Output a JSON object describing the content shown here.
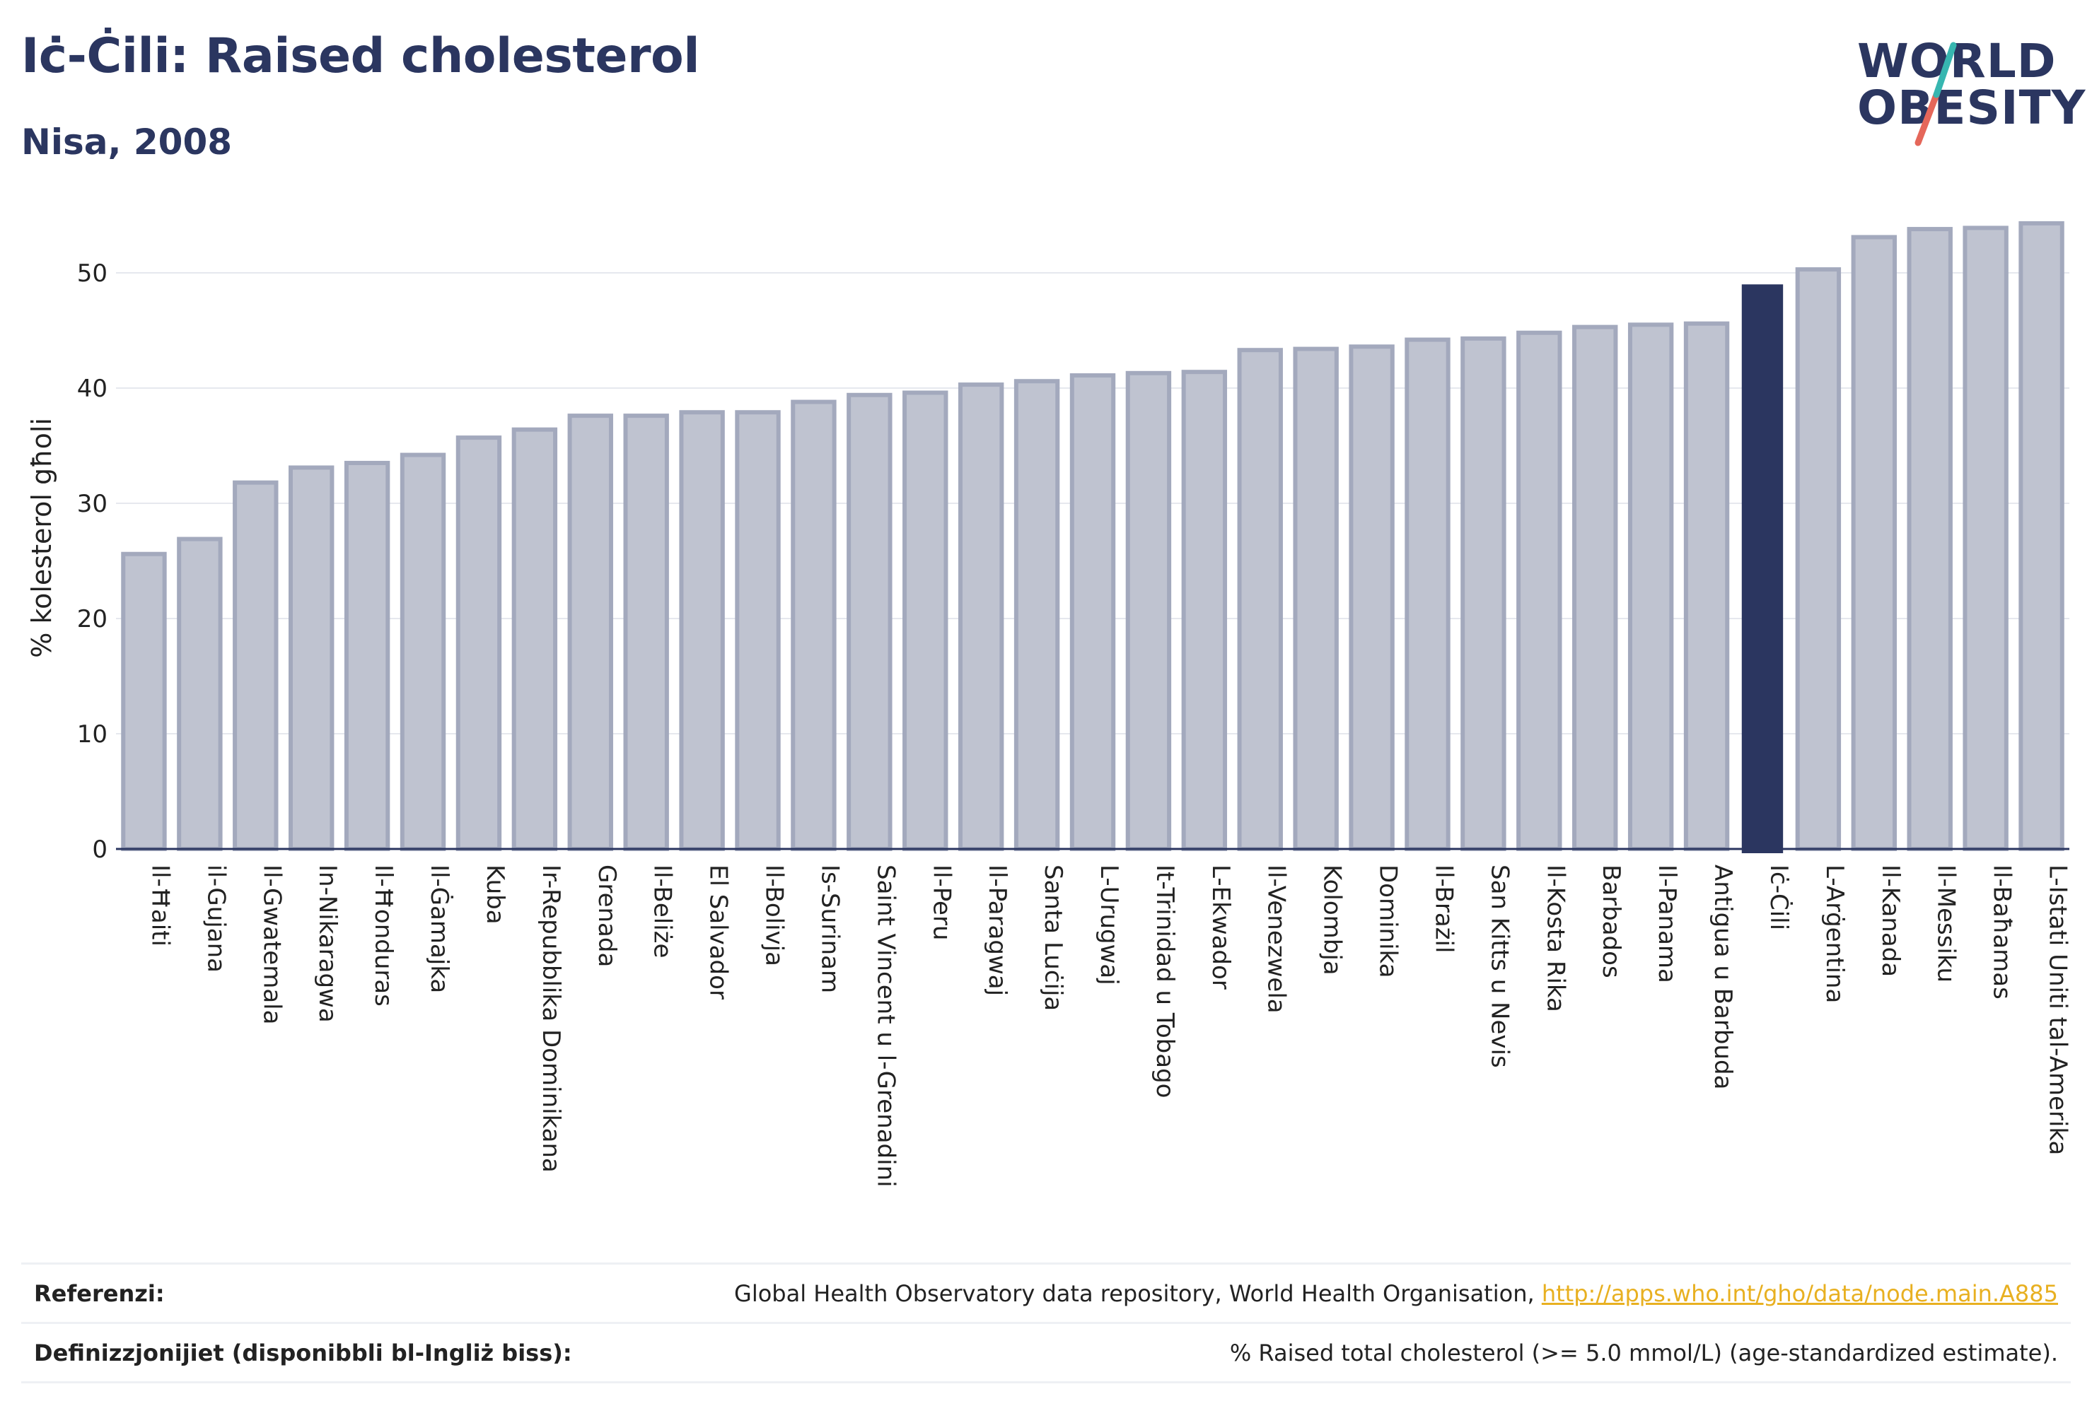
{
  "title": "Iċ-Ċili: Raised cholesterol",
  "subtitle": "Nisa, 2008",
  "logo": {
    "line1": "WORLD",
    "line2": "OBESITY",
    "accent_colors": [
      "#37b6b0",
      "#e5675a"
    ]
  },
  "colors": {
    "bar": "#bfc3d0",
    "bar_border": "#a3a9bd",
    "highlight": "#2b3660",
    "axis": "#2b3660",
    "grid": "#e6e8ee",
    "link": "#e8b021"
  },
  "chart_data": {
    "type": "bar",
    "title": "Iċ-Ċili: Raised cholesterol",
    "subtitle": "Nisa, 2008",
    "ylabel": "% kolesterol għoli",
    "xlabel": "",
    "ylim": [
      0,
      54.5
    ],
    "yticks": [
      0,
      10,
      20,
      30,
      40,
      50
    ],
    "grid": true,
    "highlight": "Iċ-Ċili",
    "categories": [
      "Il-Ħaiti",
      "il-Gujana",
      "Il-Gwatemala",
      "In-Nikaragwa",
      "Il-Ħonduras",
      "Il-Ġamajka",
      "Kuba",
      "Ir-Repubblika Dominikana",
      "Grenada",
      "Il-Beliże",
      "El Salvador",
      "Il-Bolivja",
      "Is-Surinam",
      "Saint Vincent u l-Grenadini",
      "Il-Peru",
      "Il-Paragwaj",
      "Santa Luċija",
      "L-Urugwaj",
      "It-Trinidad u Tobago",
      "L-Ekwador",
      "Il-Venezwela",
      "Kolombja",
      "Dominika",
      "Il-Brażil",
      "San Kitts u Nevis",
      "Il-Kosta Rika",
      "Barbados",
      "Il-Panama",
      "Antigua u Barbuda",
      "Iċ-Ċili",
      "L-Arġentina",
      "Il-Kanada",
      "Il-Messiku",
      "Il-Baħamas",
      "L-Istati Uniti tal-Amerika"
    ],
    "values": [
      25.6,
      26.9,
      31.8,
      33.1,
      33.5,
      34.2,
      35.7,
      36.4,
      37.6,
      37.6,
      37.9,
      37.9,
      38.8,
      39.4,
      39.6,
      40.3,
      40.6,
      41.1,
      41.3,
      41.4,
      43.3,
      43.4,
      43.6,
      44.2,
      44.3,
      44.8,
      45.3,
      45.5,
      45.6,
      49.0,
      50.3,
      53.1,
      53.8,
      53.9,
      54.3
    ]
  },
  "footer": {
    "references_label": "Referenzi:",
    "references_text": "Global Health Observatory data repository, World Health Organisation, ",
    "references_link": "http://apps.who.int/gho/data/node.main.A885",
    "definitions_label": "Definizzjonijiet (disponibbli bl-Ingliż biss):",
    "definitions_text": "% Raised total cholesterol (>= 5.0 mmol/L) (age-standardized estimate)."
  }
}
